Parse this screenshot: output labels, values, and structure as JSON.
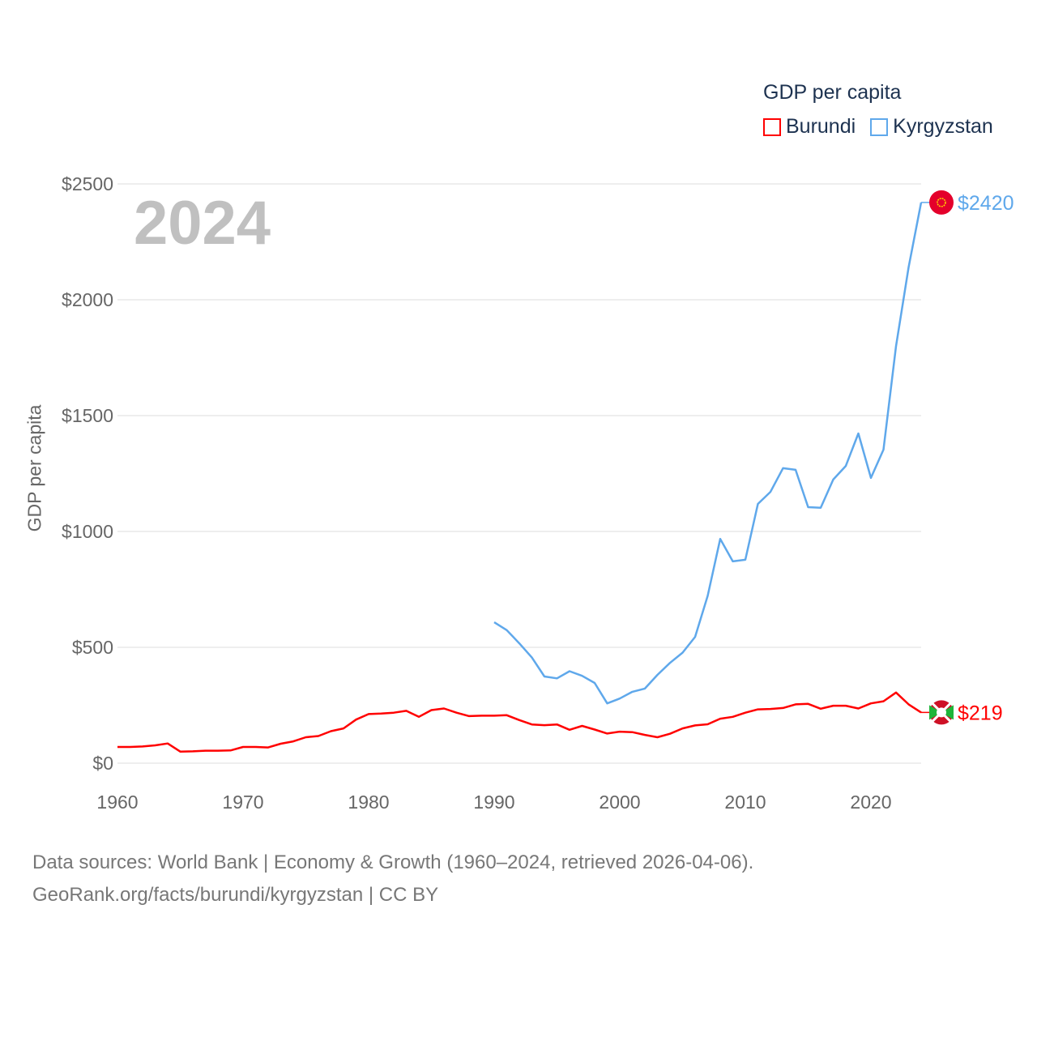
{
  "chart_data": {
    "type": "line",
    "title": "GDP per capita",
    "ylabel": "GDP per capita",
    "xlabel": "",
    "current_year": "2024",
    "xlim": [
      1960,
      2024
    ],
    "ylim": [
      0,
      2500
    ],
    "x_ticks": [
      1960,
      1970,
      1980,
      1990,
      2000,
      2010,
      2020
    ],
    "y_ticks": [
      0,
      500,
      1000,
      1500,
      2000,
      2500
    ],
    "y_tick_labels": [
      "$0",
      "$500",
      "$1000",
      "$1500",
      "$2000",
      "$2500"
    ],
    "grid": true,
    "legend_placement": "top-right",
    "series": [
      {
        "name": "Burundi",
        "color": "#ff0000",
        "end_label": "$219",
        "start_year": 1960,
        "values": [
          70,
          70,
          72,
          77,
          85,
          50,
          51,
          54,
          54,
          55,
          70,
          70,
          68,
          84,
          94,
          112,
          117,
          138,
          150,
          188,
          212,
          214,
          218,
          226,
          200,
          229,
          236,
          218,
          203,
          205,
          205,
          207,
          186,
          167,
          164,
          167,
          144,
          161,
          145,
          128,
          136,
          134,
          122,
          112,
          127,
          150,
          163,
          168,
          192,
          200,
          218,
          232,
          234,
          238,
          254,
          256,
          235,
          248,
          248,
          236,
          258,
          267,
          305,
          254,
          219
        ]
      },
      {
        "name": "Kyrgyzstan",
        "color": "#5fa8eb",
        "end_label": "$2420",
        "start_year": 1990,
        "values": [
          608,
          574,
          517,
          456,
          374,
          366,
          397,
          377,
          346,
          258,
          279,
          308,
          322,
          381,
          433,
          477,
          545,
          722,
          968,
          871,
          878,
          1119,
          1171,
          1273,
          1266,
          1105,
          1102,
          1224,
          1283,
          1423,
          1231,
          1353,
          1800,
          2140,
          2420
        ]
      }
    ]
  },
  "footer": {
    "line1": "Data sources: World Bank | Economy & Growth (1960–2024, retrieved 2026-04-06).",
    "line2": "GeoRank.org/facts/burundi/kyrgyzstan | CC BY"
  }
}
